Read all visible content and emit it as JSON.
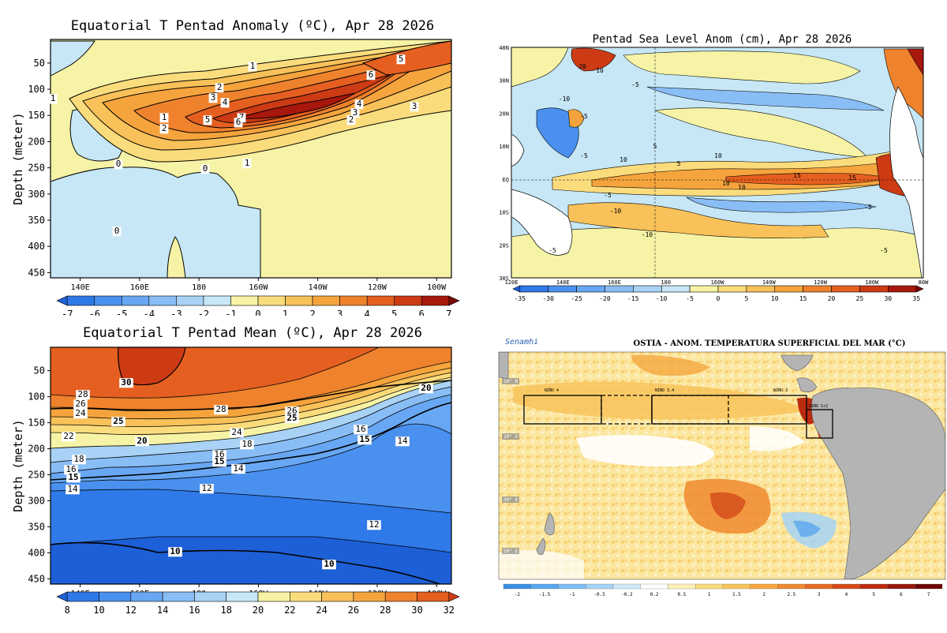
{
  "chart_data": [
    {
      "id": "anom",
      "type": "heatmap",
      "title": "Equatorial T Pentad Anomaly (ºC), Apr 28 2026",
      "xlabel": "",
      "ylabel": "Depth (meter)",
      "x_ticks": [
        "140E",
        "160E",
        "180",
        "160W",
        "140W",
        "120W",
        "100W"
      ],
      "y_ticks": [
        "50",
        "100",
        "150",
        "200",
        "250",
        "300",
        "350",
        "400",
        "450"
      ],
      "ylim": [
        5,
        460
      ],
      "colorbar": {
        "ticks": [
          "-7",
          "-6",
          "-5",
          "-4",
          "-3",
          "-2",
          "-1",
          "0",
          "1",
          "2",
          "3",
          "4",
          "5",
          "6",
          "7"
        ],
        "colors": [
          "#1c5fd6",
          "#2f79e8",
          "#4a90ef",
          "#68a7f3",
          "#89bdf5",
          "#a9d3f6",
          "#c7e7f6",
          "#f6f3a6",
          "#fbdc7c",
          "#f8c159",
          "#f5a43d",
          "#ef822c",
          "#e55f20",
          "#cc3b14",
          "#a7170c",
          "#7a0606"
        ]
      },
      "contour_labels": [
        "1",
        "5",
        "6",
        "2",
        "3",
        "4",
        "1",
        "3",
        "2",
        "5",
        "7",
        "6",
        "4",
        "3",
        "2",
        "1",
        "1",
        "0",
        "0",
        "0",
        "1"
      ]
    },
    {
      "id": "sla",
      "type": "heatmap",
      "title": "Pentad Sea Level Anom (cm), Apr 28 2026",
      "x_ticks": [
        "120E",
        "140E",
        "160E",
        "180",
        "160W",
        "140W",
        "120W",
        "100W",
        "80W"
      ],
      "y_ticks": [
        "40N",
        "30N",
        "20N",
        "10N",
        "EQ",
        "10S",
        "20S",
        "30S"
      ],
      "colorbar": {
        "ticks": [
          "-35",
          "-30",
          "-25",
          "-20",
          "-15",
          "-10",
          "-5",
          "0",
          "5",
          "10",
          "15",
          "20",
          "25",
          "30",
          "35"
        ],
        "colors": [
          "#1c5fd6",
          "#2f79e8",
          "#4a90ef",
          "#68a7f3",
          "#89bdf5",
          "#a9d3f6",
          "#c7e7f6",
          "#f6f3a6",
          "#fbdc7c",
          "#f8c159",
          "#f5a43d",
          "#ef822c",
          "#e55f20",
          "#cc3b14",
          "#a7170c",
          "#7a0606"
        ]
      },
      "contour_labels": [
        "20",
        "10",
        "-5",
        "-10",
        "-5",
        "10",
        "15",
        "5",
        "10",
        "-5",
        "-10",
        "-5",
        "15",
        "10",
        "5",
        "-5",
        "-5",
        "10",
        "-10",
        "-5"
      ]
    },
    {
      "id": "mean",
      "type": "heatmap",
      "title": "Equatorial T Pentad Mean (ºC), Apr 28 2026",
      "xlabel": "",
      "ylabel": "Depth (meter)",
      "x_ticks": [
        "140E",
        "160E",
        "180",
        "160W",
        "140W",
        "120W",
        "100W"
      ],
      "y_ticks": [
        "50",
        "100",
        "150",
        "200",
        "250",
        "300",
        "350",
        "400",
        "450"
      ],
      "ylim": [
        5,
        460
      ],
      "colorbar": {
        "ticks": [
          "8",
          "10",
          "12",
          "14",
          "16",
          "18",
          "20",
          "22",
          "24",
          "26",
          "28",
          "30",
          "32"
        ],
        "colors": [
          "#1c5fd6",
          "#2f79e8",
          "#4a90ef",
          "#68a7f3",
          "#89bdf5",
          "#a9d3f6",
          "#c7e7f6",
          "#f6f3a6",
          "#fbdc7c",
          "#f8c159",
          "#f5a43d",
          "#ef822c",
          "#e55f20",
          "#cc3b14"
        ]
      },
      "contour_labels": [
        "30",
        "28",
        "26",
        "24",
        "25",
        "22",
        "20",
        "28",
        "26",
        "25",
        "24",
        "18",
        "16",
        "15",
        "20",
        "18",
        "16",
        "15",
        "14",
        "16",
        "15",
        "14",
        "14",
        "12",
        "12",
        "10",
        "10"
      ]
    },
    {
      "id": "ostia",
      "type": "heatmap",
      "title": "OSTIA - ANOM. TEMPERATURA SUPERFICIAL DEL MAR (°C)",
      "logo": "Senamhi",
      "lat_labels": [
        "10° N",
        "10° S",
        "30° S",
        "50° S"
      ],
      "regions": [
        "NIÑO 4",
        "NIÑO 3.4",
        "NIÑO 3",
        "NIÑO 1+2"
      ],
      "colorbar": {
        "ticks": [
          "-2",
          "-1.5",
          "-1",
          "-0.5",
          "-0.2",
          "0.2",
          "0.5",
          "1",
          "1.5",
          "2",
          "2.5",
          "3",
          "4",
          "5",
          "6",
          "7"
        ],
        "colors": [
          "#3a8ee6",
          "#5aa6ee",
          "#7dbdf2",
          "#a4d3f6",
          "#cfe8f8",
          "#ffffff",
          "#fbf1b8",
          "#fadb7d",
          "#f8c35a",
          "#f5a73f",
          "#ef8a2f",
          "#e56a22",
          "#d44a18",
          "#bb2c10",
          "#96160a",
          "#6e0606"
        ]
      }
    }
  ]
}
